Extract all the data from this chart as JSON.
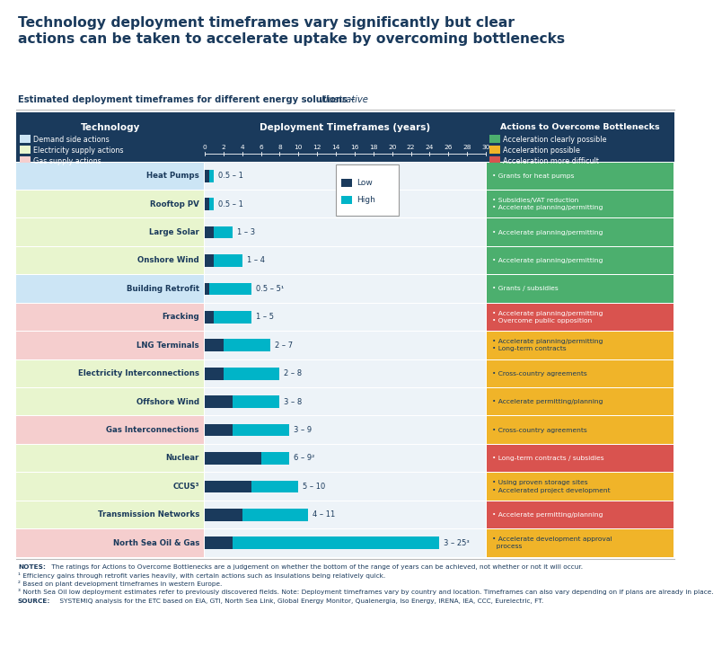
{
  "title": "Technology deployment timeframes vary significantly but clear\nactions can be taken to accelerate uptake by overcoming bottlenecks",
  "subtitle": "Estimated deployment timeframes for different energy solutions – ",
  "subtitle_italic": "Illustrative",
  "header_bg": "#1a3a5c",
  "x_max": 30,
  "x_ticks": [
    0,
    2,
    4,
    6,
    8,
    10,
    12,
    14,
    16,
    18,
    20,
    22,
    24,
    26,
    28,
    30
  ],
  "color_low": "#1a3a5c",
  "color_high": "#00b4c8",
  "technologies": [
    {
      "name": "Heat Pumps",
      "low": 0.5,
      "high": 1,
      "label": "0.5 – 1",
      "row_bg": "#cce5f5",
      "action_bg": "#4caf6e",
      "action_text": "• Grants for heat pumps",
      "category": "demand"
    },
    {
      "name": "Rooftop PV",
      "low": 0.5,
      "high": 1,
      "label": "0.5 – 1",
      "row_bg": "#e8f5ce",
      "action_bg": "#4caf6e",
      "action_text": "• Subsidies/VAT reduction\n• Accelerate planning/permitting",
      "category": "electricity"
    },
    {
      "name": "Large Solar",
      "low": 1,
      "high": 3,
      "label": "1 – 3",
      "row_bg": "#e8f5ce",
      "action_bg": "#4caf6e",
      "action_text": "• Accelerate planning/permitting",
      "category": "electricity"
    },
    {
      "name": "Onshore Wind",
      "low": 1,
      "high": 4,
      "label": "1 – 4",
      "row_bg": "#e8f5ce",
      "action_bg": "#4caf6e",
      "action_text": "• Accelerate planning/permitting",
      "category": "electricity"
    },
    {
      "name": "Building Retrofit",
      "low": 0.5,
      "high": 5,
      "label": "0.5 – 5¹",
      "row_bg": "#cce5f5",
      "action_bg": "#4caf6e",
      "action_text": "• Grants / subsidies",
      "category": "demand"
    },
    {
      "name": "Fracking",
      "low": 1,
      "high": 5,
      "label": "1 – 5",
      "row_bg": "#f5cece",
      "action_bg": "#d9534f",
      "action_text": "• Accelerate planning/permitting\n• Overcome public opposition",
      "category": "gas"
    },
    {
      "name": "LNG Terminals",
      "low": 2,
      "high": 7,
      "label": "2 – 7",
      "row_bg": "#f5cece",
      "action_bg": "#f0b429",
      "action_text": "• Accelerate planning/permitting\n• Long-term contracts",
      "category": "gas"
    },
    {
      "name": "Electricity Interconnections",
      "low": 2,
      "high": 8,
      "label": "2 – 8",
      "row_bg": "#e8f5ce",
      "action_bg": "#f0b429",
      "action_text": "• Cross-country agreements",
      "category": "electricity"
    },
    {
      "name": "Offshore Wind",
      "low": 3,
      "high": 8,
      "label": "3 – 8",
      "row_bg": "#e8f5ce",
      "action_bg": "#f0b429",
      "action_text": "• Accelerate permitting/planning",
      "category": "electricity"
    },
    {
      "name": "Gas Interconnections",
      "low": 3,
      "high": 9,
      "label": "3 – 9",
      "row_bg": "#f5cece",
      "action_bg": "#f0b429",
      "action_text": "• Cross-country agreements",
      "category": "gas"
    },
    {
      "name": "Nuclear",
      "low": 6,
      "high": 9,
      "label": "6 – 9²",
      "row_bg": "#e8f5ce",
      "action_bg": "#d9534f",
      "action_text": "• Long-term contracts / subsidies",
      "category": "electricity"
    },
    {
      "name": "CCUS³",
      "low": 5,
      "high": 10,
      "label": "5 – 10",
      "row_bg": "#e8f5ce",
      "action_bg": "#f0b429",
      "action_text": "• Using proven storage sites\n• Accelerated project development",
      "category": "electricity"
    },
    {
      "name": "Transmission Networks",
      "low": 4,
      "high": 11,
      "label": "4 – 11",
      "row_bg": "#e8f5ce",
      "action_bg": "#d9534f",
      "action_text": "• Accelerate permitting/planning",
      "category": "electricity"
    },
    {
      "name": "North Sea Oil & Gas",
      "low": 3,
      "high": 25,
      "label": "3 – 25³",
      "row_bg": "#f5cece",
      "action_bg": "#f0b429",
      "action_text": "• Accelerate development approval\n  process",
      "category": "gas"
    }
  ],
  "notes_bold": "NOTES:",
  "notes_rest": " The ratings for Actions to Overcome Bottlenecks are a judgement on whether the bottom of the range of years can be achieved, not whether or not it will occur.",
  "notes_lines": [
    "¹ Efficiency gains through retrofit varies heavily, with certain actions such as insulations being relatively quick.",
    "² Based on plant development timeframes in western Europe.",
    "³ North Sea Oil low deployment estimates refer to previously discovered fields. Note: Deployment timeframes vary by country and location. Timeframes can also vary depending on if plans are already in place."
  ],
  "source_bold": "SOURCE:",
  "source_rest": " SYSTEMIQ analysis for the ETC based on EIA, GTI, North Sea Link, Global Energy Monitor, Qualenergia, Iso Energy, IRENA, IEA, CCC, Eurelectric, FT.",
  "legend_low_label": "Low",
  "legend_high_label": "High",
  "left_legend": [
    {
      "color": "#cce5f5",
      "label": "Demand side actions"
    },
    {
      "color": "#e8f5ce",
      "label": "Electricity supply actions"
    },
    {
      "color": "#f5cece",
      "label": "Gas supply actions"
    }
  ],
  "right_legend": [
    {
      "color": "#4caf6e",
      "label": "Acceleration clearly possible"
    },
    {
      "color": "#f0b429",
      "label": "Acceleration possible"
    },
    {
      "color": "#d9534f",
      "label": "Acceleration more difficult"
    }
  ]
}
